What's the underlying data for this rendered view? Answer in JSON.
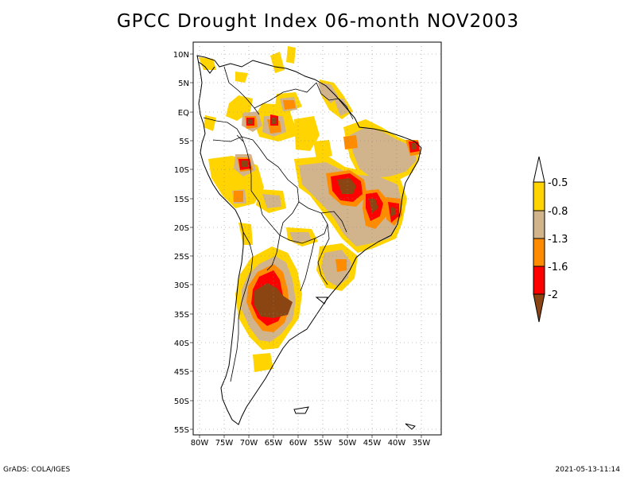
{
  "title": "GPCC Drought Index 06-month NOV2003",
  "axes": {
    "lat_labels": [
      "10N",
      "5N",
      "EQ",
      "5S",
      "10S",
      "15S",
      "20S",
      "25S",
      "30S",
      "35S",
      "40S",
      "45S",
      "50S",
      "55S"
    ],
    "lon_labels": [
      "80W",
      "75W",
      "70W",
      "65W",
      "60W",
      "55W",
      "50W",
      "45W",
      "40W",
      "35W"
    ]
  },
  "legend": {
    "labels": [
      "-0.5",
      "-0.8",
      "-1.3",
      "-1.6",
      "-2"
    ],
    "colors": [
      "#ffffff",
      "#ffd400",
      "#d2b48c",
      "#ff8c00",
      "#ff0000",
      "#8b4513"
    ]
  },
  "footer": {
    "left": "GrADS: COLA/IGES",
    "right": "2021-05-13-11:14"
  }
}
